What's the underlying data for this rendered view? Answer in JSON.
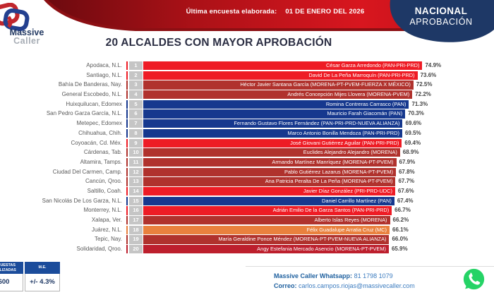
{
  "header": {
    "banner_label": "Última encuesta elaborada:",
    "banner_date": "01 DE ENERO DEL 2026",
    "badge_line1": "NACIONAL",
    "badge_line2": "APROBACIÓN",
    "logo_line1": "Massive",
    "logo_line2": "Caller"
  },
  "title": "20 ALCALDES CON MAYOR APROBACIÓN",
  "chart_data": {
    "type": "bar",
    "orientation": "horizontal",
    "unit": "%",
    "xlim": [
      0,
      75
    ],
    "title": "20 ALCALDES CON MAYOR APROBACIÓN",
    "rows": [
      {
        "rank": 1,
        "city": "Apodaca, N.L.",
        "label": "César Garza Arredondo (PAN-PRI-PRD)",
        "value": 74.9,
        "color": "#ee1c25"
      },
      {
        "rank": 2,
        "city": "Santiago, N.L.",
        "label": "David De La Peña Marroquín (PAN-PRI-PRD)",
        "value": 73.6,
        "color": "#ee1c25"
      },
      {
        "rank": 3,
        "city": "Bahía De Banderas, Nay.",
        "label": "Héctor Javier Santana García (MORENA-PT-PVEM-FUERZA X MÉXICO)",
        "value": 72.5,
        "color": "#b0322d"
      },
      {
        "rank": 4,
        "city": "General Escobedo, N.L.",
        "label": "Andrés Concepción Mijes Llovera (MORENA-PVEM)",
        "value": 72.2,
        "color": "#b0322d"
      },
      {
        "rank": 5,
        "city": "Huixquilucan, Edomex",
        "label": "Romina Contreras Carrasco (PAN)",
        "value": 71.3,
        "color": "#16388e"
      },
      {
        "rank": 6,
        "city": "San Pedro Garza García, N.L.",
        "label": "Mauricio Farah Giacomán (PAN)",
        "value": 70.3,
        "color": "#16388e"
      },
      {
        "rank": 7,
        "city": "Metepec, Edomex",
        "label": "Fernando Gustavo Flores Fernández (PAN-PRI-PRD-NUEVA ALIANZA)",
        "value": 69.6,
        "color": "#16388e"
      },
      {
        "rank": 8,
        "city": "Chihuahua, Chih.",
        "label": "Marco Antonio Bonilla Mendoza (PAN-PRI-PRD)",
        "value": 69.5,
        "color": "#16388e"
      },
      {
        "rank": 9,
        "city": "Coyoacán, Cd. Méx.",
        "label": "José Giovani Gutiérrez Aguilar (PAN-PRI-PRD)",
        "value": 69.4,
        "color": "#ee1c25"
      },
      {
        "rank": 10,
        "city": "Cárdenas, Tab.",
        "label": "Euclides Alejandro Alejandro (MORENA)",
        "value": 68.9,
        "color": "#b0322d"
      },
      {
        "rank": 11,
        "city": "Altamira, Tamps.",
        "label": "Armando Martínez Manríquez (MORENA-PT-PVEM)",
        "value": 67.9,
        "color": "#b0322d"
      },
      {
        "rank": 12,
        "city": "Ciudad Del Carmen, Camp.",
        "label": "Pablo Gutiérrez Lazarus (MORENA-PT-PVEM)",
        "value": 67.8,
        "color": "#b0322d"
      },
      {
        "rank": 13,
        "city": "Cancún, Qroo.",
        "label": "Ana Patricia Peralta De La Peña (MORENA-PT-PVEM)",
        "value": 67.7,
        "color": "#b0322d"
      },
      {
        "rank": 14,
        "city": "Saltillo, Coah.",
        "label": "Javier Díaz González (PRI-PRD-UDC)",
        "value": 67.6,
        "color": "#ee1c25"
      },
      {
        "rank": 15,
        "city": "San Nicolás De Los Garza, N.L.",
        "label": "Daniel Carrillo Martínez (PAN)",
        "value": 67.4,
        "color": "#16388e"
      },
      {
        "rank": 16,
        "city": "Monterrey, N.L.",
        "label": "Adrián Emilio De la Garza Santos (PAN-PRI-PRD)",
        "value": 66.7,
        "color": "#ee1c25"
      },
      {
        "rank": 17,
        "city": "Xalapa, Ver.",
        "label": "Alberto Islas Reyes (MORENA)",
        "value": 66.2,
        "color": "#b0322d"
      },
      {
        "rank": 18,
        "city": "Juárez, N.L.",
        "label": "Félix Guadalupe Arratia Cruz (MC)",
        "value": 66.1,
        "color": "#e9813e"
      },
      {
        "rank": 19,
        "city": "Tepic, Nay.",
        "label": "María Geraldine Ponce Méndez (MORENA-PT-PVEM-NUEVA ALIANZA)",
        "value": 66.0,
        "color": "#b0322d"
      },
      {
        "rank": 20,
        "city": "Solidaridad, Qroo.",
        "label": "Angy Estefania Mercado Asencio (MORENA-PT-PVEM)",
        "value": 65.9,
        "color": "#bd1f2d"
      }
    ]
  },
  "footer": {
    "table": {
      "headers": [
        "ENCUESTAS REALIZADAS",
        "M.E."
      ],
      "values": [
        "600",
        "+/- 4.3%"
      ]
    },
    "contact": {
      "whatsapp_label": "Massive Caller Whatsapp:",
      "whatsapp_number": "81 1798 1079",
      "email_label": "Correo:",
      "email": "carlos.campos.riojas@massivecaller.com"
    }
  },
  "colors": {
    "bar_red": "#ee1c25",
    "bar_brick": "#b0322d",
    "bar_navy": "#16388e",
    "bar_orange": "#e9813e",
    "rank_box": "#c5c5c5",
    "badge_navy": "#1e3866",
    "banner_red_dark": "#6d0a0f",
    "banner_red_bright": "#d8161f",
    "table_header_blue": "#1b4c9b",
    "whatsapp_green": "#25d366"
  }
}
